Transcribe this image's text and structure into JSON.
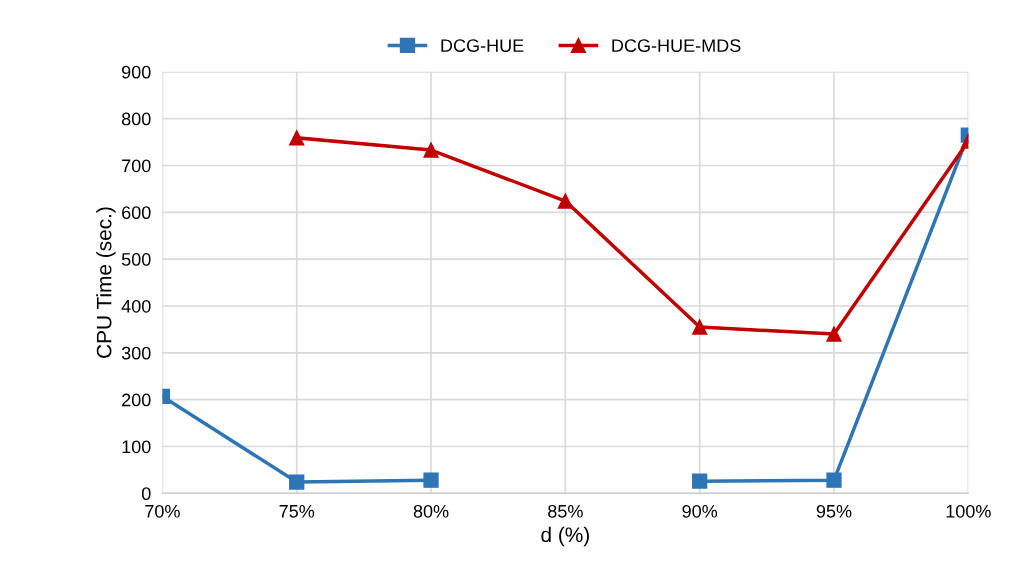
{
  "chart_data": {
    "type": "line",
    "xlabel": "d (%)",
    "ylabel": "CPU Time (sec.)",
    "x": [
      70,
      75,
      80,
      85,
      90,
      95,
      100
    ],
    "series": [
      {
        "name": "DCG-HUE",
        "color": "#2e75b6",
        "marker": "square",
        "values": [
          207,
          24,
          28,
          null,
          26,
          28,
          765
        ]
      },
      {
        "name": "DCG-HUE-MDS",
        "color": "#c00000",
        "marker": "triangle",
        "values": [
          null,
          759,
          733,
          624,
          355,
          340,
          752
        ]
      }
    ],
    "xlim": [
      70,
      100
    ],
    "xticks": [
      {
        "value": 70,
        "label": "70%"
      },
      {
        "value": 75,
        "label": "75%"
      },
      {
        "value": 80,
        "label": "80%"
      },
      {
        "value": 85,
        "label": "85%"
      },
      {
        "value": 90,
        "label": "90%"
      },
      {
        "value": 95,
        "label": "95%"
      },
      {
        "value": 100,
        "label": "100%"
      }
    ],
    "ylim": [
      0,
      900
    ],
    "yticks": [
      0,
      100,
      200,
      300,
      400,
      500,
      600,
      700,
      800,
      900
    ],
    "grid": true,
    "legend": "top",
    "line_style": "solid"
  }
}
